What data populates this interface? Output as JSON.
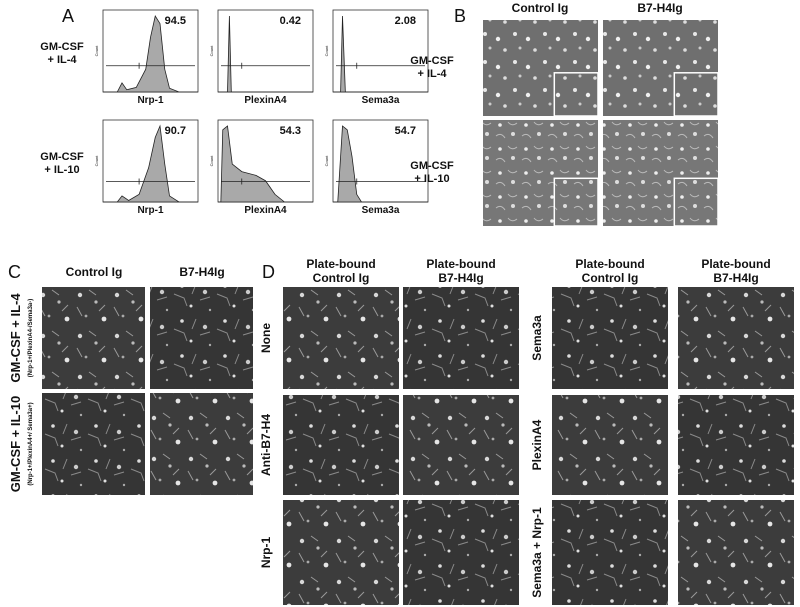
{
  "panel_a": {
    "label": "A",
    "y_axis_label": "Count",
    "rows": [
      {
        "condition": [
          "GM-CSF",
          "+ IL-4"
        ],
        "plots": [
          {
            "marker": "Nrp-1",
            "percent": 94.5
          },
          {
            "marker": "PlexinA4",
            "percent": 0.42
          },
          {
            "marker": "Sema3a",
            "percent": 2.08
          }
        ]
      },
      {
        "condition": [
          "GM-CSF",
          "+ IL-10"
        ],
        "plots": [
          {
            "marker": "Nrp-1",
            "percent": 90.7
          },
          {
            "marker": "PlexinA4",
            "percent": 54.3
          },
          {
            "marker": "Sema3a",
            "percent": 54.7
          }
        ]
      }
    ]
  },
  "panel_b": {
    "label": "B",
    "columns": [
      "Control Ig",
      "B7-H4Ig"
    ],
    "rows": [
      [
        "GM-CSF",
        "+ IL-4"
      ],
      [
        "GM-CSF",
        "+ IL-10"
      ]
    ]
  },
  "panel_c": {
    "label": "C",
    "columns": [
      "Control Ig",
      "B7-H4Ig"
    ],
    "rows": [
      {
        "condition": "GM-CSF + IL-4",
        "phenotype": "(Nrp-1+/PlexinA4-/Sema3a-)"
      },
      {
        "condition": "GM-CSF + IL-10",
        "phenotype": "(Nrp-1+/PlexinA4+/ Sema3a+)"
      }
    ]
  },
  "panel_d": {
    "label": "D",
    "groups": [
      {
        "columns": [
          [
            "Plate-bound",
            "Control Ig"
          ],
          [
            "Plate-bound",
            "B7-H4Ig"
          ]
        ],
        "rows": [
          "None",
          "Anti-B7-H4",
          "Nrp-1"
        ]
      },
      {
        "columns": [
          [
            "Plate-bound",
            "Control Ig"
          ],
          [
            "Plate-bound",
            "B7-H4Ig"
          ]
        ],
        "rows": [
          "Sema3a",
          "PlexinA4",
          "Sema3a + Nrp-1"
        ]
      }
    ]
  }
}
